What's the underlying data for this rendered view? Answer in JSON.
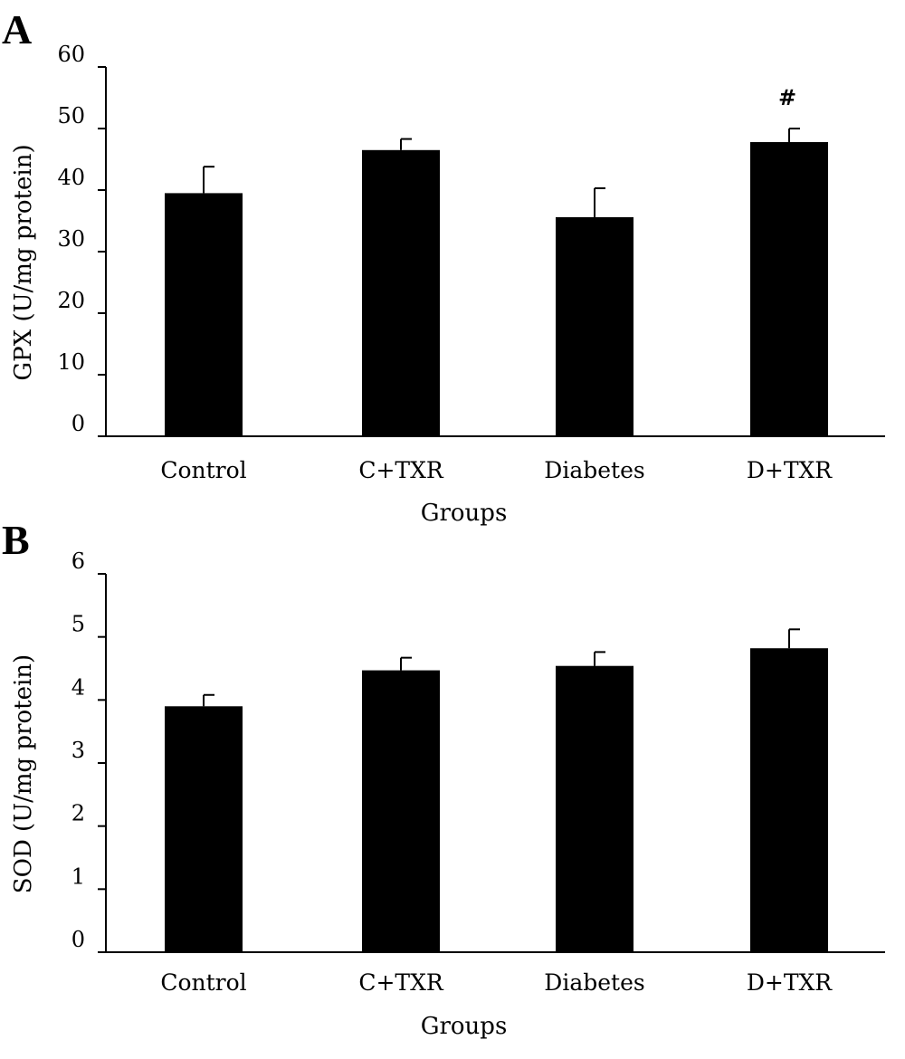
{
  "chart_data": [
    {
      "panel": "A",
      "type": "bar",
      "categories": [
        "Control",
        "C+TXR",
        "Diabetes",
        "D+TXR"
      ],
      "values": [
        39.5,
        46.5,
        35.6,
        47.8
      ],
      "error": [
        4.3,
        1.8,
        4.7,
        2.2
      ],
      "annotations": [
        "",
        "",
        "",
        "#"
      ],
      "xlabel": "Groups",
      "ylabel": "GPX (U/mg protein)",
      "ylim": [
        0,
        60
      ],
      "yticks": [
        0,
        10,
        20,
        30,
        40,
        50,
        60
      ],
      "bar_color": "#000000",
      "grid": false
    },
    {
      "panel": "B",
      "type": "bar",
      "categories": [
        "Control",
        "C+TXR",
        "Diabetes",
        "D+TXR"
      ],
      "values": [
        3.9,
        4.47,
        4.54,
        4.82
      ],
      "error": [
        0.18,
        0.2,
        0.22,
        0.3
      ],
      "annotations": [
        "",
        "",
        "",
        ""
      ],
      "xlabel": "Groups",
      "ylabel": "SOD (U/mg protein)",
      "ylim": [
        0,
        6
      ],
      "yticks": [
        0,
        1,
        2,
        3,
        4,
        5,
        6
      ],
      "bar_color": "#000000",
      "grid": false
    }
  ]
}
